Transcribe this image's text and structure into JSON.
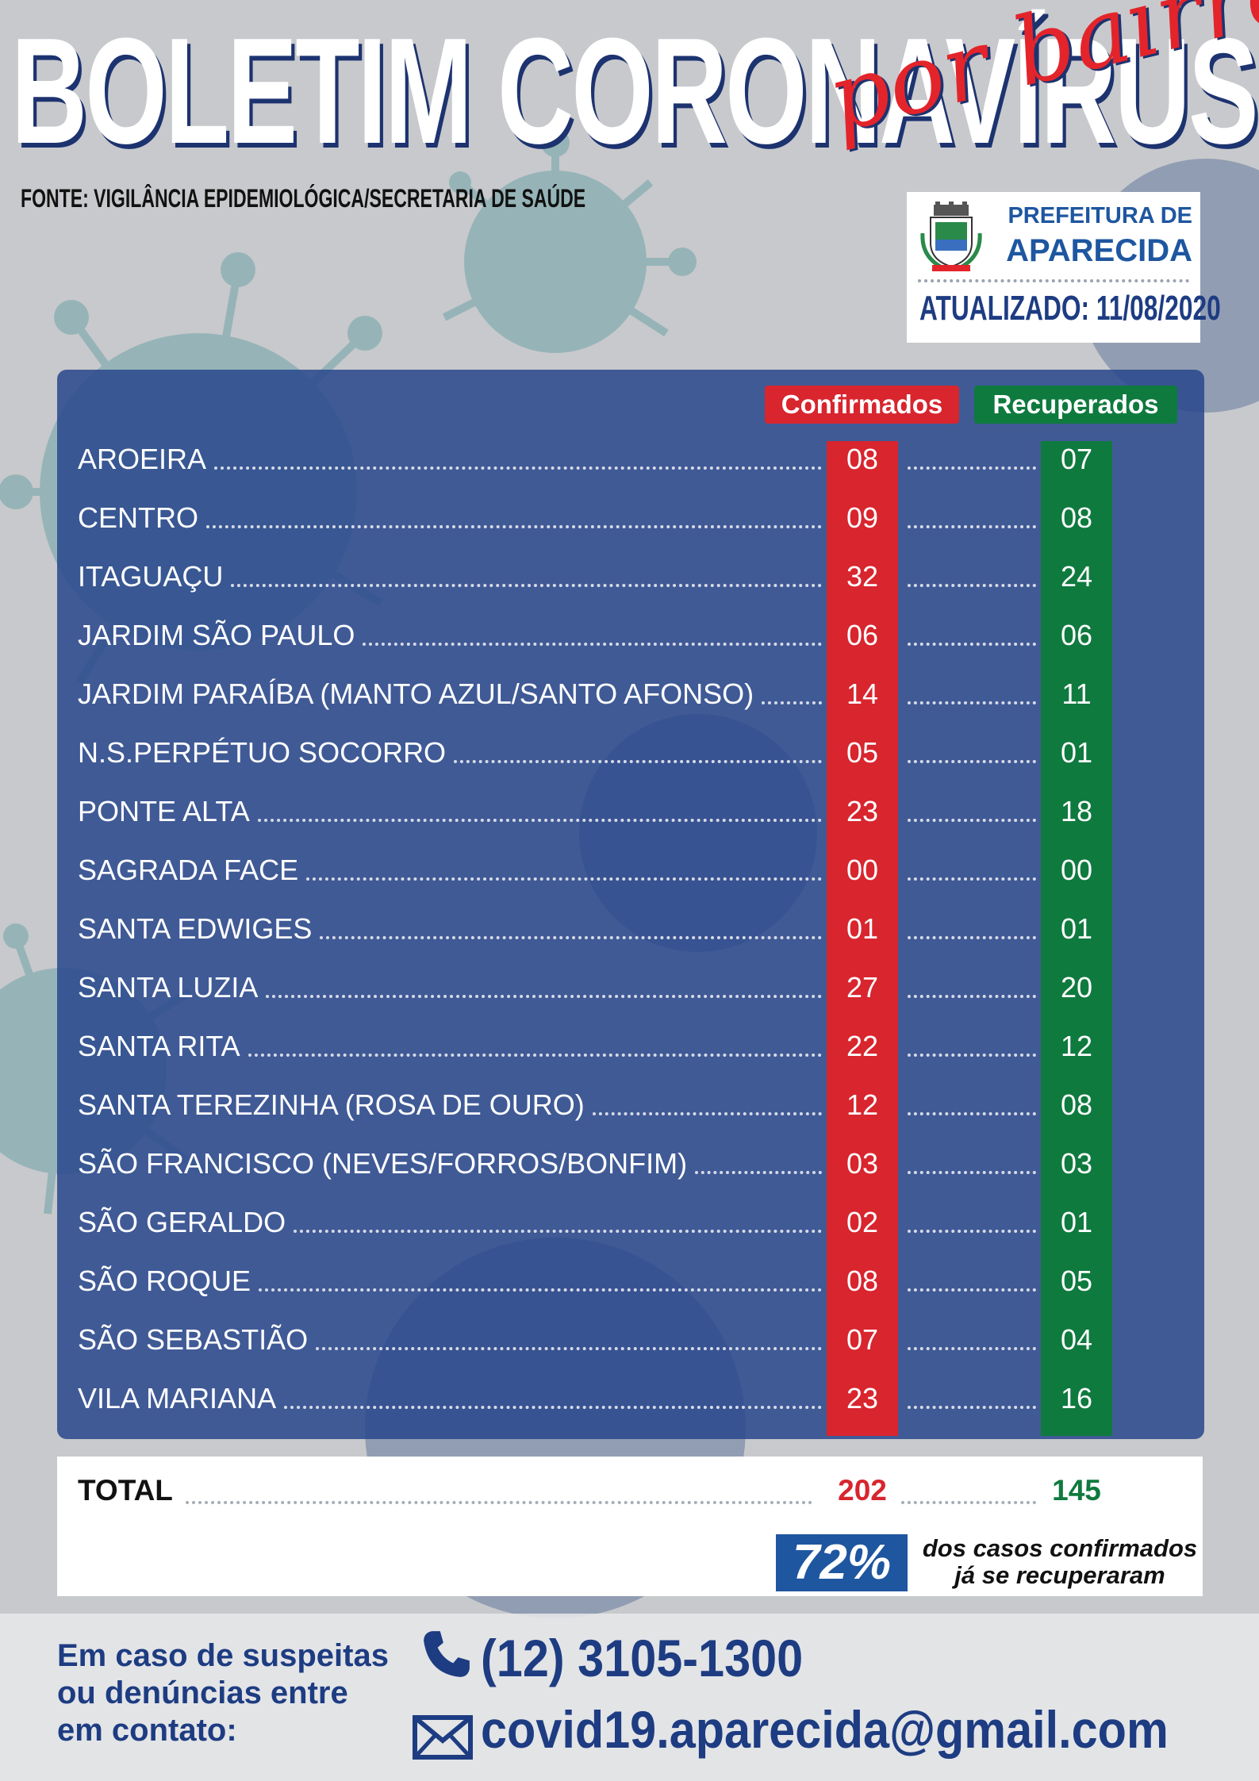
{
  "header": {
    "title": "BOLETIM CORONAVÍRUS",
    "subtitle": "por bairro",
    "source": "FONTE: VIGILÂNCIA EPIDEMIOLÓGICA/SECRETARIA DE SAÚDE"
  },
  "logo": {
    "line1": "PREFEITURA DE",
    "line2": "APARECIDA",
    "updated": "ATUALIZADO: 11/08/2020"
  },
  "table": {
    "col_confirmed": "Confirmados",
    "col_recovered": "Recuperados",
    "rows": [
      {
        "name": "AROEIRA",
        "confirmed": "08",
        "recovered": "07"
      },
      {
        "name": "CENTRO",
        "confirmed": "09",
        "recovered": "08"
      },
      {
        "name": "ITAGUAÇU",
        "confirmed": "32",
        "recovered": "24"
      },
      {
        "name": "JARDIM SÃO PAULO",
        "confirmed": "06",
        "recovered": "06"
      },
      {
        "name": "JARDIM PARAÍBA (MANTO AZUL/SANTO AFONSO)",
        "confirmed": "14",
        "recovered": "11"
      },
      {
        "name": "N.S.PERPÉTUO SOCORRO",
        "confirmed": "05",
        "recovered": "01"
      },
      {
        "name": "PONTE ALTA",
        "confirmed": "23",
        "recovered": "18"
      },
      {
        "name": "SAGRADA FACE",
        "confirmed": "00",
        "recovered": "00"
      },
      {
        "name": "SANTA EDWIGES",
        "confirmed": "01",
        "recovered": "01"
      },
      {
        "name": "SANTA LUZIA",
        "confirmed": "27",
        "recovered": "20"
      },
      {
        "name": "SANTA RITA",
        "confirmed": "22",
        "recovered": "12"
      },
      {
        "name": "SANTA TEREZINHA (ROSA DE OURO)",
        "confirmed": "12",
        "recovered": "08"
      },
      {
        "name": "SÃO FRANCISCO (NEVES/FORROS/BONFIM)",
        "confirmed": "03",
        "recovered": "03"
      },
      {
        "name": "SÃO GERALDO",
        "confirmed": "02",
        "recovered": "01"
      },
      {
        "name": "SÃO ROQUE",
        "confirmed": "08",
        "recovered": "05"
      },
      {
        "name": "SÃO SEBASTIÃO",
        "confirmed": "07",
        "recovered": "04"
      },
      {
        "name": "VILA MARIANA",
        "confirmed": "23",
        "recovered": "16"
      }
    ]
  },
  "total": {
    "label": "TOTAL",
    "confirmed": "202",
    "recovered": "145",
    "percent": "72%",
    "percent_text_1": "dos casos confirmados",
    "percent_text_2": "já se recuperaram"
  },
  "footer": {
    "contact_text": "Em caso de suspeitas ou denúncias entre em contato:",
    "phone": "(12) 3105-1300",
    "email": "covid19.aparecida@gmail.com"
  },
  "colors": {
    "red": "#d8252e",
    "green": "#0f7a3e",
    "navy": "#1d3c82",
    "panel": "#28468c"
  },
  "icons": [
    "virus-illustration",
    "city-crest-icon",
    "phone-icon",
    "envelope-icon"
  ]
}
